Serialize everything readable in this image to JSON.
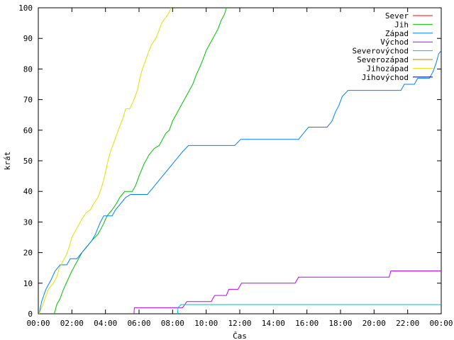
{
  "chart_data": {
    "type": "line",
    "title": "",
    "xlabel": "Čas",
    "ylabel": "krát",
    "xlim": [
      0,
      24
    ],
    "ylim": [
      0,
      100
    ],
    "x_unit": "hours",
    "x_ticks": [
      {
        "value": 0,
        "label": "00:00"
      },
      {
        "value": 2,
        "label": "02:00"
      },
      {
        "value": 4,
        "label": "04:00"
      },
      {
        "value": 6,
        "label": "06:00"
      },
      {
        "value": 8,
        "label": "08:00"
      },
      {
        "value": 10,
        "label": "10:00"
      },
      {
        "value": 12,
        "label": "12:00"
      },
      {
        "value": 14,
        "label": "14:00"
      },
      {
        "value": 16,
        "label": "16:00"
      },
      {
        "value": 18,
        "label": "18:00"
      },
      {
        "value": 20,
        "label": "20:00"
      },
      {
        "value": 22,
        "label": "22:00"
      },
      {
        "value": 24,
        "label": "00:00"
      }
    ],
    "y_ticks": [
      0,
      10,
      20,
      30,
      40,
      50,
      60,
      70,
      80,
      90,
      100
    ],
    "grid": false,
    "legend_position": "top-right",
    "series": [
      {
        "name": "Sever",
        "color": "#ff0000",
        "points": []
      },
      {
        "name": "Jih",
        "color": "#00c000",
        "points": [
          [
            0.95,
            0
          ],
          [
            1.1,
            3
          ],
          [
            1.3,
            5
          ],
          [
            1.5,
            8
          ],
          [
            1.75,
            11
          ],
          [
            2.0,
            14
          ],
          [
            2.3,
            17
          ],
          [
            2.6,
            20
          ],
          [
            2.9,
            22
          ],
          [
            3.2,
            24
          ],
          [
            3.55,
            26
          ],
          [
            3.85,
            29
          ],
          [
            4.1,
            32
          ],
          [
            4.4,
            34
          ],
          [
            4.65,
            36
          ],
          [
            4.85,
            38
          ],
          [
            5.0,
            39
          ],
          [
            5.15,
            40
          ],
          [
            5.6,
            40
          ],
          [
            5.8,
            42
          ],
          [
            6.0,
            45
          ],
          [
            6.3,
            49
          ],
          [
            6.6,
            52
          ],
          [
            6.9,
            54
          ],
          [
            7.2,
            55
          ],
          [
            7.4,
            57
          ],
          [
            7.6,
            59
          ],
          [
            7.8,
            60
          ],
          [
            8.0,
            63
          ],
          [
            8.3,
            66
          ],
          [
            8.6,
            69
          ],
          [
            8.9,
            72
          ],
          [
            9.2,
            75
          ],
          [
            9.4,
            78
          ],
          [
            9.65,
            81
          ],
          [
            9.8,
            83
          ],
          [
            10.0,
            86
          ],
          [
            10.2,
            88
          ],
          [
            10.4,
            90
          ],
          [
            10.7,
            93
          ],
          [
            10.9,
            96
          ],
          [
            11.1,
            98
          ],
          [
            11.2,
            100
          ]
        ]
      },
      {
        "name": "Západ",
        "color": "#0080ff",
        "points": [
          [
            0.05,
            0
          ],
          [
            0.2,
            4
          ],
          [
            0.45,
            8
          ],
          [
            0.75,
            11
          ],
          [
            1.0,
            14
          ],
          [
            1.3,
            16
          ],
          [
            1.7,
            16
          ],
          [
            1.9,
            18
          ],
          [
            2.3,
            18
          ],
          [
            2.6,
            20
          ],
          [
            2.9,
            22
          ],
          [
            3.2,
            24
          ],
          [
            3.4,
            26
          ],
          [
            3.55,
            28
          ],
          [
            3.7,
            30
          ],
          [
            3.9,
            32
          ],
          [
            4.4,
            32
          ],
          [
            4.6,
            34
          ],
          [
            4.9,
            36
          ],
          [
            5.2,
            38
          ],
          [
            5.5,
            39
          ],
          [
            6.5,
            39
          ],
          [
            6.8,
            41
          ],
          [
            7.1,
            43
          ],
          [
            7.4,
            45
          ],
          [
            7.7,
            47
          ],
          [
            8.0,
            49
          ],
          [
            8.3,
            51
          ],
          [
            8.6,
            53
          ],
          [
            8.95,
            55
          ],
          [
            11.7,
            55
          ],
          [
            12.05,
            57
          ],
          [
            15.5,
            57
          ],
          [
            15.8,
            59
          ],
          [
            16.1,
            61
          ],
          [
            17.2,
            61
          ],
          [
            17.5,
            63
          ],
          [
            17.7,
            66
          ],
          [
            17.9,
            68
          ],
          [
            18.1,
            71
          ],
          [
            18.45,
            73
          ],
          [
            21.6,
            73
          ],
          [
            21.8,
            75
          ],
          [
            22.4,
            75
          ],
          [
            22.6,
            77
          ],
          [
            23.3,
            77
          ],
          [
            23.5,
            79
          ],
          [
            23.7,
            82
          ],
          [
            23.85,
            85
          ],
          [
            24.0,
            86
          ]
        ]
      },
      {
        "name": "Východ",
        "color": "#c000ff",
        "points": [
          [
            5.7,
            0
          ],
          [
            5.72,
            2
          ],
          [
            8.6,
            2
          ],
          [
            8.85,
            4
          ],
          [
            10.3,
            4
          ],
          [
            10.5,
            6
          ],
          [
            11.2,
            6
          ],
          [
            11.35,
            8
          ],
          [
            11.9,
            8
          ],
          [
            12.1,
            10
          ],
          [
            15.3,
            10
          ],
          [
            15.5,
            12
          ],
          [
            20.9,
            12
          ],
          [
            21.0,
            14
          ],
          [
            24.0,
            14
          ]
        ]
      },
      {
        "name": "Severovýchod",
        "color": "#00c0c0",
        "points": [
          [
            8.3,
            0
          ],
          [
            8.32,
            2
          ],
          [
            8.5,
            3
          ],
          [
            24.0,
            3
          ]
        ]
      },
      {
        "name": "Severozápad",
        "color": "#c08000",
        "points": []
      },
      {
        "name": "Jihozápad",
        "color": "#e0e000",
        "points": [
          [
            0.05,
            0
          ],
          [
            0.2,
            2
          ],
          [
            0.4,
            5
          ],
          [
            0.6,
            8
          ],
          [
            0.9,
            10
          ],
          [
            1.1,
            12
          ],
          [
            1.25,
            15
          ],
          [
            1.45,
            17
          ],
          [
            1.65,
            19
          ],
          [
            1.85,
            22
          ],
          [
            2.0,
            25
          ],
          [
            2.2,
            27
          ],
          [
            2.4,
            29
          ],
          [
            2.6,
            31
          ],
          [
            2.85,
            33
          ],
          [
            3.1,
            34
          ],
          [
            3.3,
            36
          ],
          [
            3.55,
            38
          ],
          [
            3.75,
            41
          ],
          [
            3.95,
            45
          ],
          [
            4.15,
            50
          ],
          [
            4.3,
            53
          ],
          [
            4.5,
            56
          ],
          [
            4.7,
            59
          ],
          [
            4.9,
            62
          ],
          [
            5.05,
            64
          ],
          [
            5.2,
            67
          ],
          [
            5.45,
            67
          ],
          [
            5.7,
            70
          ],
          [
            5.9,
            73
          ],
          [
            6.05,
            77
          ],
          [
            6.2,
            80
          ],
          [
            6.4,
            83
          ],
          [
            6.6,
            86
          ],
          [
            6.75,
            88
          ],
          [
            7.0,
            90
          ],
          [
            7.15,
            92
          ],
          [
            7.35,
            95
          ],
          [
            7.6,
            97
          ],
          [
            7.75,
            98
          ],
          [
            7.9,
            100
          ]
        ]
      },
      {
        "name": "Jihovýchod",
        "color": "#0000a0",
        "points": []
      }
    ]
  }
}
